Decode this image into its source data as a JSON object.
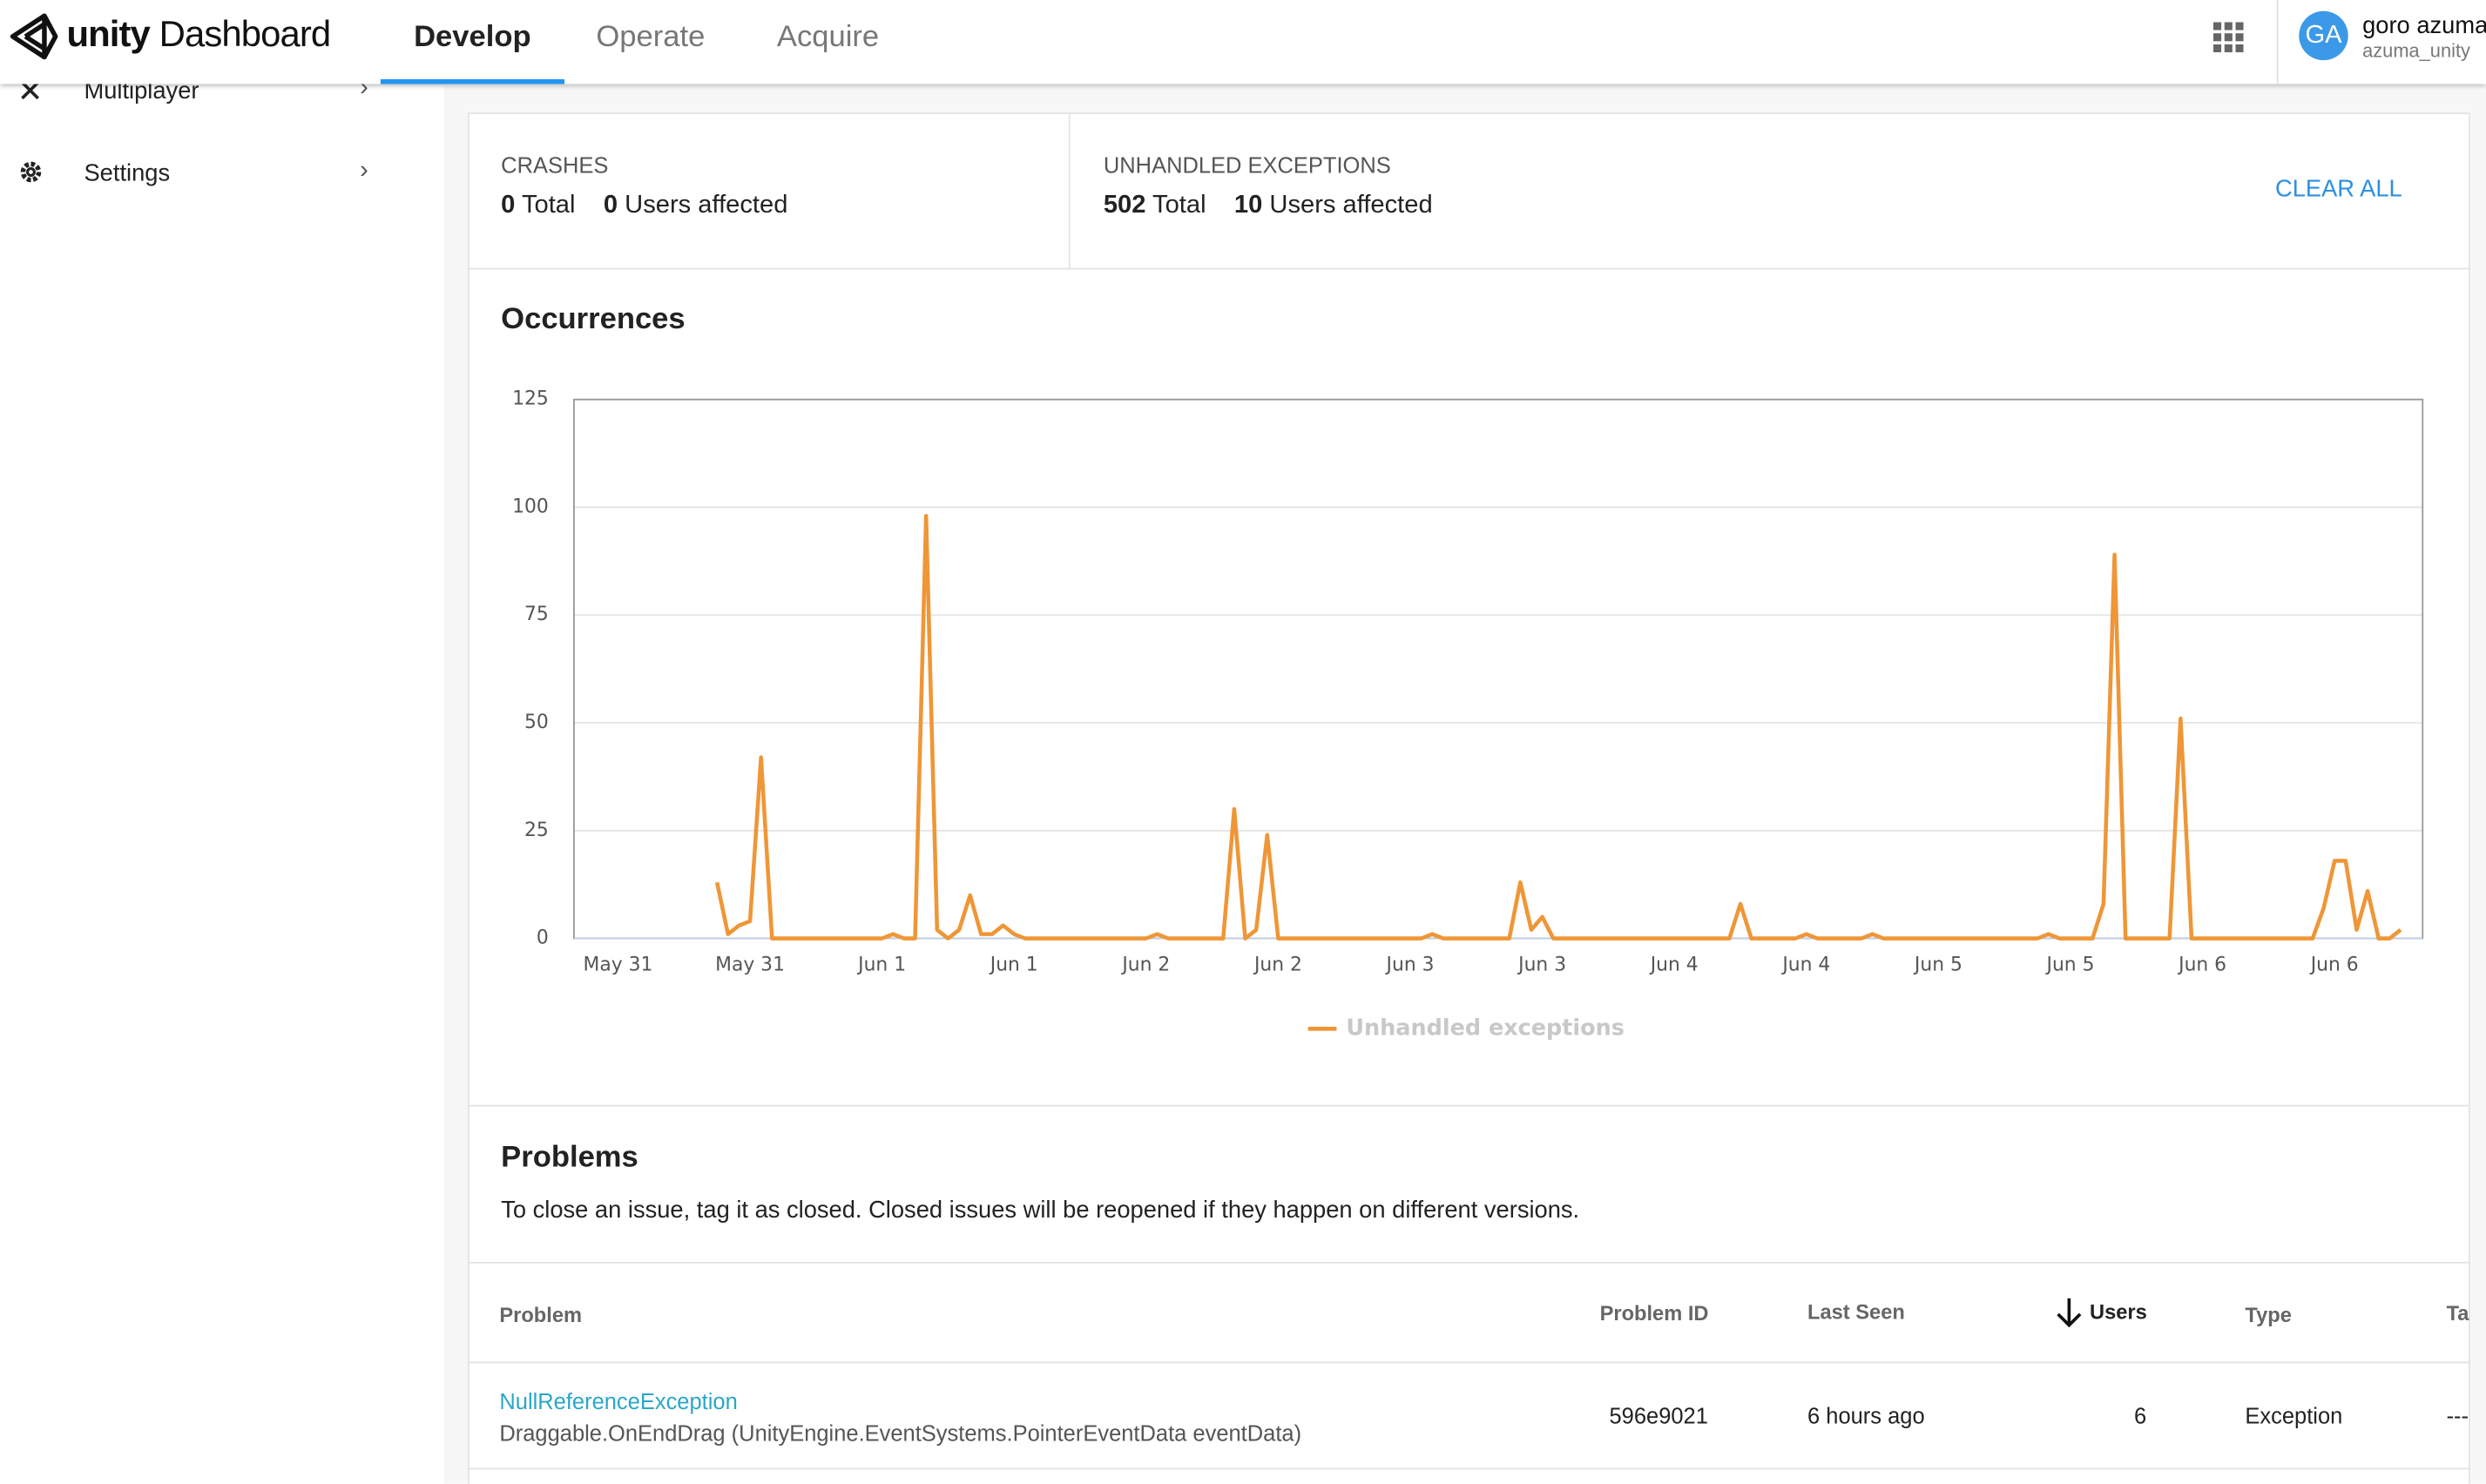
{
  "header": {
    "brand": "unity",
    "product": "Dashboard",
    "tabs": [
      "Develop",
      "Operate",
      "Acquire"
    ],
    "avatar": "GA",
    "user_name": "goro azuma",
    "user_id": "azuma_unity"
  },
  "sidebar": {
    "items": [
      "Multiplayer",
      "Settings"
    ]
  },
  "summary": {
    "crashes": {
      "title": "CRASHES",
      "total": "0",
      "total_label": "Total",
      "users": "0",
      "users_label": "Users affected"
    },
    "exceptions": {
      "title": "UNHANDLED EXCEPTIONS",
      "total": "502",
      "total_label": "Total",
      "users": "10",
      "users_label": "Users affected"
    },
    "clear": "CLEAR ALL"
  },
  "chart_data": {
    "type": "line",
    "title": "Occurrences",
    "categories": [
      null,
      null,
      null,
      null,
      "May 31",
      null,
      null,
      null,
      null,
      null,
      null,
      null,
      null,
      null,
      null,
      null,
      "May 31",
      null,
      null,
      null,
      null,
      null,
      null,
      null,
      null,
      null,
      null,
      null,
      "Jun 1",
      null,
      null,
      null,
      null,
      null,
      null,
      null,
      null,
      null,
      null,
      null,
      "Jun 1",
      null,
      null,
      null,
      null,
      null,
      null,
      null,
      null,
      null,
      null,
      null,
      "Jun 2",
      null,
      null,
      null,
      null,
      null,
      null,
      null,
      null,
      null,
      null,
      null,
      "Jun 2",
      null,
      null,
      null,
      null,
      null,
      null,
      null,
      null,
      null,
      null,
      null,
      "Jun 3",
      null,
      null,
      null,
      null,
      null,
      null,
      null,
      null,
      null,
      null,
      null,
      "Jun 3",
      null,
      null,
      null,
      null,
      null,
      null,
      null,
      null,
      null,
      null,
      null,
      "Jun 4",
      null,
      null,
      null,
      null,
      null,
      null,
      null,
      null,
      null,
      null,
      null,
      "Jun 4",
      null,
      null,
      null,
      null,
      null,
      null,
      null,
      null,
      null,
      null,
      null,
      "Jun 5",
      null,
      null,
      null,
      null,
      null,
      null,
      null,
      null,
      null,
      null,
      null,
      "Jun 5",
      null,
      null,
      null,
      null,
      null,
      null,
      null,
      null,
      null,
      null,
      null,
      "Jun 6",
      null,
      null,
      null,
      null,
      null,
      null,
      null,
      null,
      null,
      null,
      null,
      "Jun 6",
      null,
      null,
      null,
      null,
      null,
      null,
      null,
      null
    ],
    "series": [
      {
        "name": "Unhandled exceptions",
        "color": "#ef9637",
        "values": [
          null,
          null,
          null,
          null,
          null,
          null,
          null,
          null,
          null,
          null,
          null,
          null,
          null,
          13,
          1,
          3,
          4,
          42,
          0,
          0,
          0,
          0,
          0,
          0,
          0,
          0,
          0,
          0,
          0,
          1,
          0,
          0,
          98,
          2,
          0,
          2,
          10,
          1,
          1,
          3,
          1,
          0,
          0,
          0,
          0,
          0,
          0,
          0,
          0,
          0,
          0,
          0,
          0,
          1,
          0,
          0,
          0,
          0,
          0,
          0,
          30,
          0,
          2,
          24,
          0,
          0,
          0,
          0,
          0,
          0,
          0,
          0,
          0,
          0,
          0,
          0,
          0,
          0,
          1,
          0,
          0,
          0,
          0,
          0,
          0,
          0,
          13,
          2,
          5,
          0,
          0,
          0,
          0,
          0,
          0,
          0,
          0,
          0,
          0,
          0,
          0,
          0,
          0,
          0,
          0,
          0,
          8,
          0,
          0,
          0,
          0,
          0,
          1,
          0,
          0,
          0,
          0,
          0,
          1,
          0,
          0,
          0,
          0,
          0,
          0,
          0,
          0,
          0,
          0,
          0,
          0,
          0,
          0,
          0,
          1,
          0,
          0,
          0,
          0,
          8,
          89,
          0,
          0,
          0,
          0,
          0,
          51,
          0,
          0,
          0,
          0,
          0,
          0,
          0,
          0,
          0,
          0,
          0,
          0,
          7,
          18,
          18,
          2,
          11,
          0,
          0,
          2,
          null,
          null
        ]
      }
    ],
    "ylim": [
      0,
      125
    ],
    "yticks": [
      0,
      25,
      50,
      75,
      100,
      125
    ],
    "grid": true,
    "legend": "bottom"
  },
  "problems": {
    "title": "Problems",
    "description": "To close an issue, tag it as closed. Closed issues will be reopened if they happen on different versions.",
    "columns": [
      "Problem",
      "Problem ID",
      "Last Seen",
      "Users",
      "Type",
      "Ta"
    ],
    "rows": [
      {
        "name": "NullReferenceException",
        "detail": "Draggable.OnEndDrag (UnityEngine.EventSystems.PointerEventData eventData)",
        "id": "596e9021",
        "last_seen": "6 hours ago",
        "users": "6",
        "type": "Exception",
        "tag": "---"
      }
    ]
  }
}
